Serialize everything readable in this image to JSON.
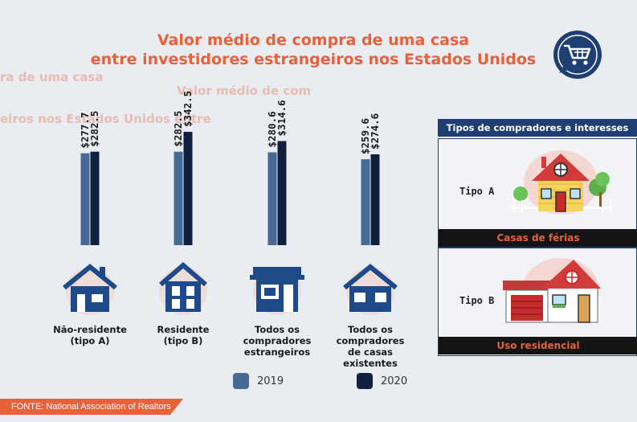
{
  "title": {
    "line1": "Valor médio de compra de uma casa",
    "line2": "entre investidores estrangeiros nos Estados Unidos"
  },
  "ghost_text": {
    "line1": "ra de uma casa",
    "line2": "Valor médio de com",
    "line3": "eiros nos Estados Unidos entre"
  },
  "icons": {
    "cart": "shopping-cart-icon",
    "categories": [
      "house-small-door-icon",
      "house-window-grid-icon",
      "storefront-house-icon",
      "house-two-windows-icon"
    ]
  },
  "colors": {
    "series_2019": "#456a94",
    "series_2020": "#0f213f",
    "accent": "#e8613a",
    "navy": "#1f3e72"
  },
  "chart_data": {
    "type": "bar",
    "categories": [
      "Não-residente (tipo A)",
      "Residente (tipo B)",
      "Todos os compradores estrangeiros",
      "Todos os compradores de casas existentes"
    ],
    "series": [
      {
        "name": "2019",
        "values": [
          277.7,
          282.5,
          280.6,
          259.6
        ]
      },
      {
        "name": "2020",
        "values": [
          282.5,
          342.5,
          314.6,
          274.6
        ]
      }
    ],
    "value_labels": [
      [
        "$277.7",
        "$282.5"
      ],
      [
        "$282.5",
        "$342.5"
      ],
      [
        "$280.6",
        "$314.6"
      ],
      [
        "$259.6",
        "$274.6"
      ]
    ],
    "legend_position": "bottom",
    "grid": false
  },
  "category_labels": [
    [
      "Não-residente",
      "(tipo A)"
    ],
    [
      "Residente",
      "(tipo B)"
    ],
    [
      "Todos os",
      "compradores",
      "estrangeiros"
    ],
    [
      "Todos os",
      "compradores",
      "de casas",
      "existentes"
    ]
  ],
  "legend": [
    {
      "label": "2019"
    },
    {
      "label": "2020"
    }
  ],
  "source": "FONTE: National Association of Realtors",
  "panel": {
    "header": "Tipos de compradores e interesses",
    "type_a": {
      "label": "Tipo A",
      "band": "Casas de férias"
    },
    "type_b": {
      "label": "Tipo B",
      "band": "Uso residencial"
    }
  }
}
